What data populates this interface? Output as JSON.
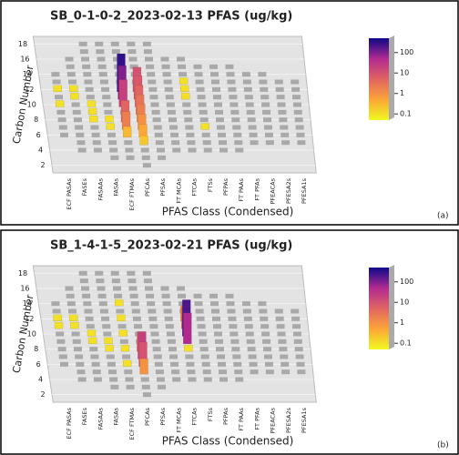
{
  "chart_data": [
    {
      "type": "tile3d",
      "title": "SB_0-1-0-2_2023-02-13 PFAS (ug/kg)",
      "x_label": "PFAS Class (Condensed)",
      "y_label": "Carbon Number",
      "panel_label": "(a)",
      "categories": [
        "ECF PASAs",
        "FASEs",
        "FASAAs",
        "FASAs",
        "ECF FTMAs",
        "PFCAs",
        "PFSAs",
        "FT MCAs",
        "FTCAs",
        "FTSs",
        "PFPAs",
        "FT PAAs",
        "FT PFAs",
        "PFEACAs",
        "PFESA2s",
        "PFESA1s"
      ],
      "ylim": [
        1,
        19
      ],
      "yticks": [
        2,
        4,
        6,
        8,
        10,
        12,
        14,
        16,
        18
      ],
      "clim": [
        0.05,
        500
      ],
      "cticks": [
        100,
        10,
        1,
        0.1
      ],
      "log_color": true,
      "points": {
        "category": [
          "ECF PASAs",
          "ECF PASAs",
          "FASEs",
          "FASEs",
          "FASAAs",
          "FASAAs",
          "FASAAs",
          "FASAs",
          "FASAs",
          "ECF FTMAs",
          "ECF FTMAs",
          "ECF FTMAs",
          "ECF FTMAs",
          "ECF FTMAs",
          "ECF FTMAs",
          "PFCAs",
          "PFCAs",
          "PFCAs",
          "PFCAs",
          "PFCAs",
          "PFCAs",
          "PFCAs",
          "PFCAs",
          "FTCAs",
          "FTCAs",
          "FTCAs",
          "FTSs"
        ],
        "carbon": [
          12,
          10,
          12,
          11,
          10,
          9,
          8,
          8,
          7,
          12,
          11,
          10,
          8,
          7,
          6,
          12,
          11,
          10,
          9,
          8,
          7,
          6,
          5,
          13,
          12,
          11,
          7
        ],
        "values": [
          0.1,
          0.1,
          0.1,
          0.1,
          0.1,
          0.1,
          0.1,
          0.1,
          0.1,
          300,
          100,
          20,
          5,
          2,
          0.3,
          10,
          8,
          5,
          3,
          2,
          1,
          0.5,
          0.2,
          0.1,
          0.1,
          0.1,
          0.1
        ]
      }
    },
    {
      "type": "tile3d",
      "title": "SB_1-4-1-5_2023-02-21 PFAS (ug/kg)",
      "x_label": "PFAS Class (Condensed)",
      "y_label": "Carbon Number",
      "panel_label": "(b)",
      "categories": [
        "ECF PASAs",
        "FASEs",
        "FASAAs",
        "FASAs",
        "ECF FTMAs",
        "PFCAs",
        "PFSAs",
        "FT MCAs",
        "FTCAs",
        "FTSs",
        "PFPAs",
        "FT PAAs",
        "FT PFAs",
        "PFEACAs",
        "PFESA2s",
        "PFESA1s"
      ],
      "ylim": [
        1,
        19
      ],
      "yticks": [
        2,
        4,
        6,
        8,
        10,
        12,
        14,
        16,
        18
      ],
      "clim": [
        0.05,
        500
      ],
      "cticks": [
        100,
        10,
        1,
        0.1
      ],
      "log_color": true,
      "points": {
        "category": [
          "ECF PASAs",
          "ECF PASAs",
          "FASEs",
          "FASEs",
          "FASAAs",
          "FASAAs",
          "FASAs",
          "FASAs",
          "ECF FTMAs",
          "ECF FTMAs",
          "ECF FTMAs",
          "ECF FTMAs",
          "ECF FTMAs",
          "PFCAs",
          "PFCAs",
          "PFCAs",
          "PFCAs",
          "FTCAs",
          "FTCAs",
          "FTCAs",
          "FTCAs",
          "FTCAs"
        ],
        "carbon": [
          12,
          11,
          12,
          11,
          10,
          9,
          9,
          8,
          14,
          12,
          10,
          8,
          6,
          8,
          7,
          6,
          5,
          12,
          11,
          10,
          9,
          8
        ],
        "values": [
          0.1,
          0.1,
          0.1,
          0.1,
          0.1,
          0.1,
          0.1,
          0.1,
          0.1,
          0.1,
          0.1,
          0.1,
          0.1,
          3,
          20,
          10,
          1,
          1,
          5,
          200,
          50,
          0.1
        ]
      }
    }
  ]
}
